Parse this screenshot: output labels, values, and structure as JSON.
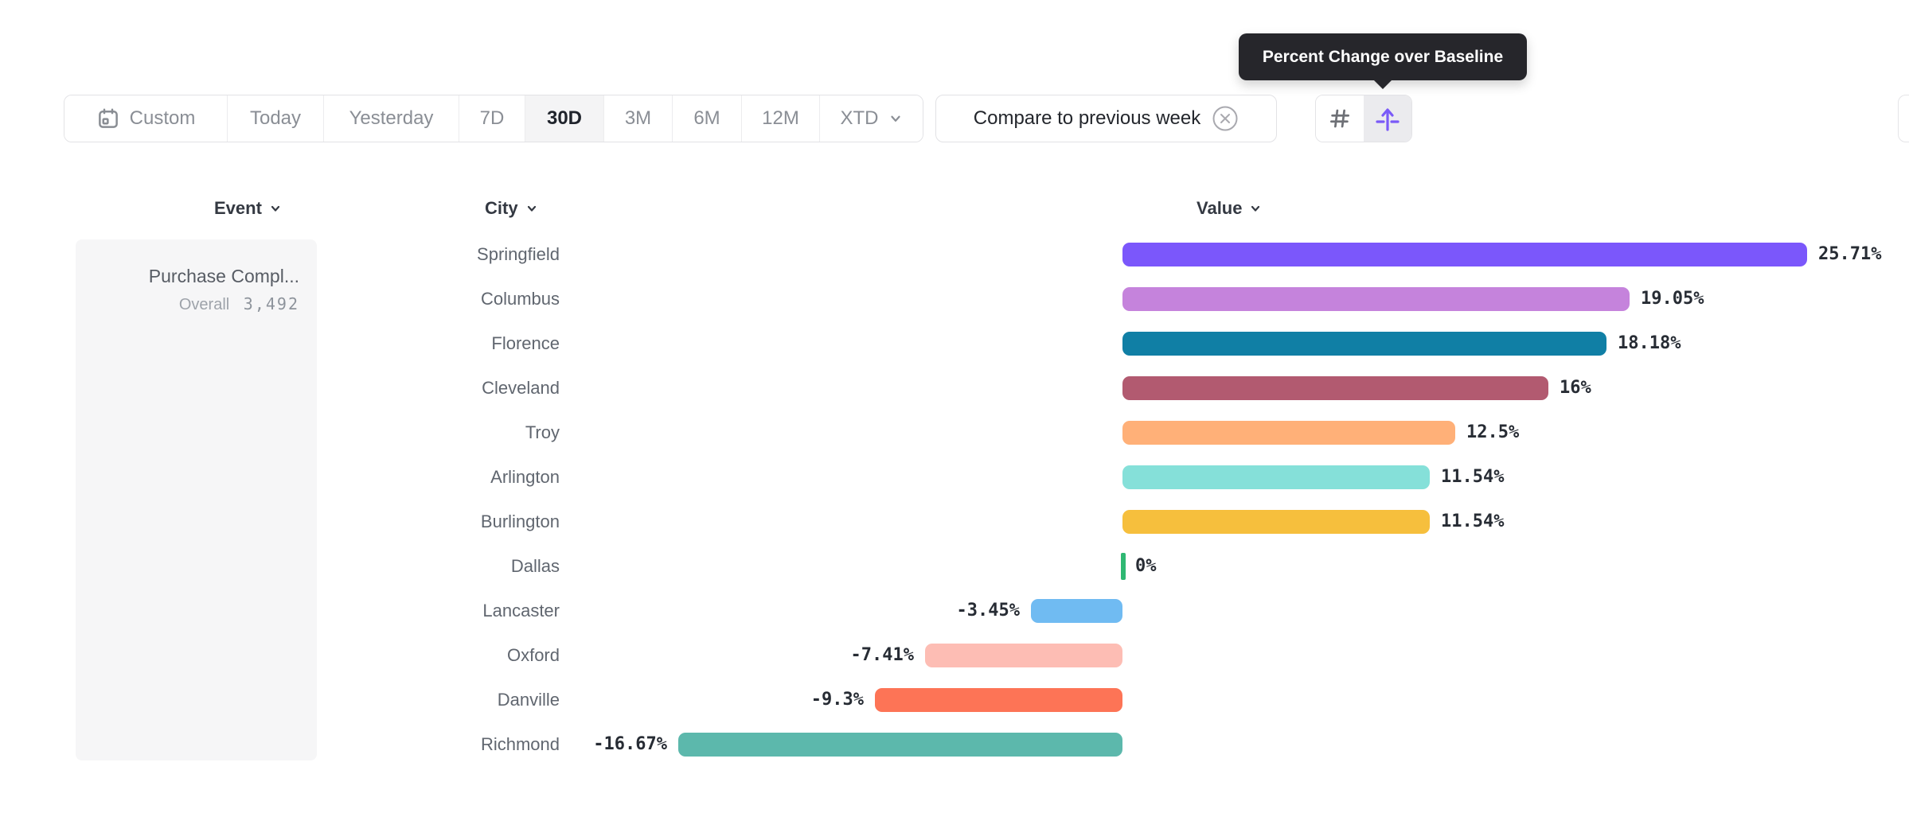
{
  "tooltip": {
    "text": "Percent Change over Baseline"
  },
  "toolbar": {
    "date_ranges": [
      {
        "label": "Custom",
        "icon": "calendar-icon",
        "selected": false
      },
      {
        "label": "Today",
        "selected": false
      },
      {
        "label": "Yesterday",
        "selected": false
      },
      {
        "label": "7D",
        "selected": false
      },
      {
        "label": "30D",
        "selected": true
      },
      {
        "label": "3M",
        "selected": false
      },
      {
        "label": "6M",
        "selected": false
      },
      {
        "label": "12M",
        "selected": false
      },
      {
        "label": "XTD",
        "icon": "chevron-down-icon",
        "selected": false
      }
    ],
    "compare": {
      "label": "Compare to previous week",
      "close_icon": "circle-x-icon"
    },
    "view_toggles": [
      {
        "icon": "hash-icon",
        "selected": false,
        "color": "#6E7076"
      },
      {
        "icon": "percent-change-baseline-icon",
        "selected": true,
        "color": "#7A5AF8",
        "tooltip": "Percent Change over Baseline"
      }
    ]
  },
  "columns": [
    {
      "label": "Event",
      "icon": "chevron-down-icon"
    },
    {
      "label": "City",
      "icon": "chevron-down-icon"
    },
    {
      "label": "Value",
      "icon": "chevron-down-icon"
    }
  ],
  "event_panel": {
    "event_name": "Purchase Compl...",
    "metric_label": "Overall",
    "metric_value": "3,492"
  },
  "chart_data": {
    "type": "bar",
    "orientation": "horizontal",
    "value_unit": "%",
    "xlim": [
      -16.67,
      25.71
    ],
    "legend": "none",
    "grid": "off",
    "categories": [
      "Springfield",
      "Columbus",
      "Florence",
      "Cleveland",
      "Troy",
      "Arlington",
      "Burlington",
      "Dallas",
      "Lancaster",
      "Oxford",
      "Danville",
      "Richmond"
    ],
    "values": [
      25.71,
      19.05,
      18.18,
      16,
      12.5,
      11.54,
      11.54,
      0,
      -3.45,
      -7.41,
      -9.3,
      -16.67
    ],
    "rows": [
      {
        "city": "Springfield",
        "value": 25.71,
        "label": "25.71%",
        "color": "#7B57FB"
      },
      {
        "city": "Columbus",
        "value": 19.05,
        "label": "19.05%",
        "color": "#C583DC"
      },
      {
        "city": "Florence",
        "value": 18.18,
        "label": "18.18%",
        "color": "#107FA5"
      },
      {
        "city": "Cleveland",
        "value": 16,
        "label": "16%",
        "color": "#B25A70"
      },
      {
        "city": "Troy",
        "value": 12.5,
        "label": "12.5%",
        "color": "#FFB078"
      },
      {
        "city": "Arlington",
        "value": 11.54,
        "label": "11.54%",
        "color": "#85E0D9"
      },
      {
        "city": "Burlington",
        "value": 11.54,
        "label": "11.54%",
        "color": "#F6BF3D"
      },
      {
        "city": "Dallas",
        "value": 0,
        "label": "0%",
        "color": "#2FB873"
      },
      {
        "city": "Lancaster",
        "value": -3.45,
        "label": "-3.45%",
        "color": "#70BBF2"
      },
      {
        "city": "Oxford",
        "value": -7.41,
        "label": "-7.41%",
        "color": "#FDBDB4"
      },
      {
        "city": "Danville",
        "value": -9.3,
        "label": "-9.3%",
        "color": "#FD7456"
      },
      {
        "city": "Richmond",
        "value": -16.67,
        "label": "-16.67%",
        "color": "#5CB8AC"
      }
    ]
  },
  "colors": {
    "tooltip_bg": "#26262B",
    "accent_purple": "#7A5AF8",
    "selected_bg": "#F4F4F5",
    "border": "#E2E2E5",
    "muted_text": "#8A8E95",
    "dark_text": "#23262C"
  }
}
